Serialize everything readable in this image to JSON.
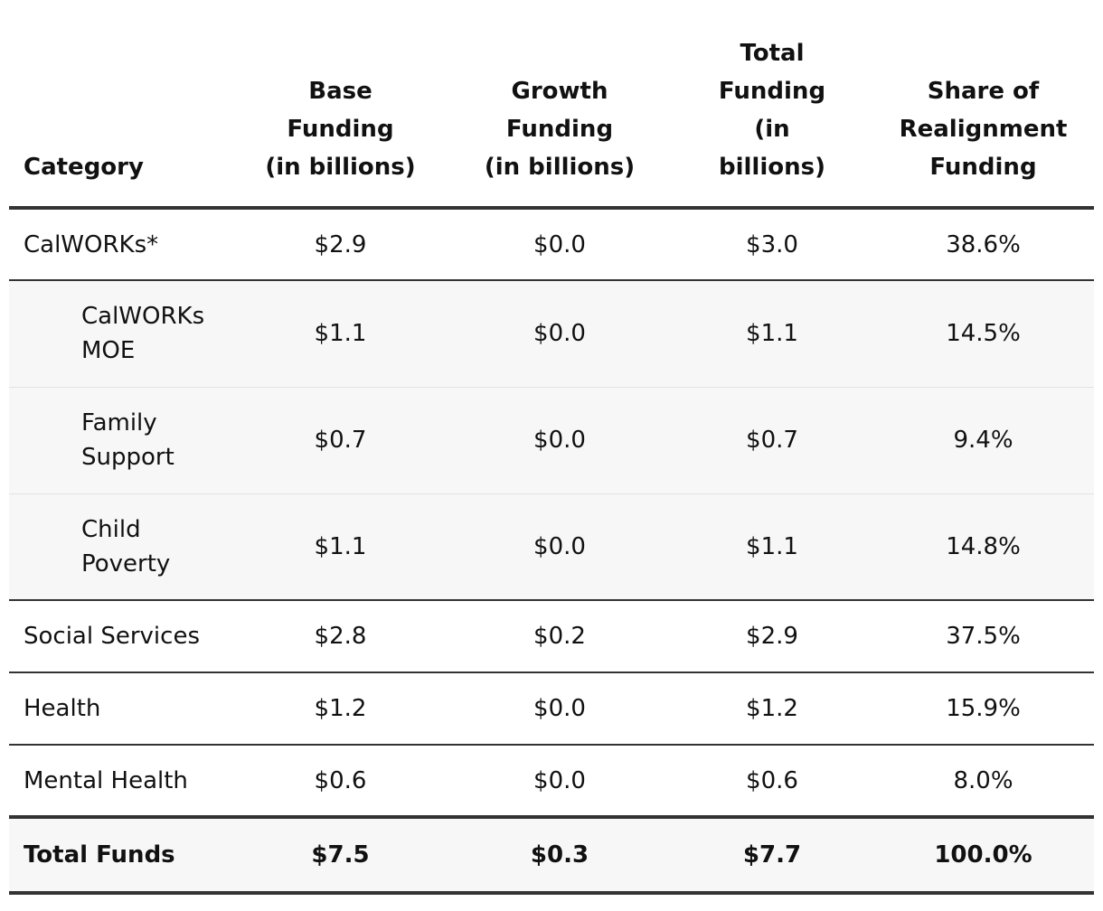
{
  "table": {
    "headers": {
      "category": "Category",
      "base": [
        "Base",
        "Funding",
        "(in billions)"
      ],
      "growth": [
        "Growth",
        "Funding",
        "(in billions)"
      ],
      "total": [
        "Total",
        "Funding",
        "(in",
        "billions)"
      ],
      "share": [
        "Share of",
        "Realignment",
        "Funding"
      ]
    },
    "rows": [
      {
        "category": "CalWORKs*",
        "base": "$2.9",
        "growth": "$0.0",
        "total": "$3.0",
        "share": "38.6%"
      },
      {
        "category": "CalWORKs MOE",
        "base": "$1.1",
        "growth": "$0.0",
        "total": "$1.1",
        "share": "14.5%"
      },
      {
        "category": "Family Support",
        "base": "$0.7",
        "growth": "$0.0",
        "total": "$0.7",
        "share": "9.4%"
      },
      {
        "category": "Child Poverty",
        "base": "$1.1",
        "growth": "$0.0",
        "total": "$1.1",
        "share": "14.8%"
      },
      {
        "category": "Social Services",
        "base": "$2.8",
        "growth": "$0.2",
        "total": "$2.9",
        "share": "37.5%"
      },
      {
        "category": "Health",
        "base": "$1.2",
        "growth": "$0.0",
        "total": "$1.2",
        "share": "15.9%"
      },
      {
        "category": "Mental Health",
        "base": "$0.6",
        "growth": "$0.0",
        "total": "$0.6",
        "share": "8.0%"
      }
    ],
    "total": {
      "category": "Total Funds",
      "base": "$7.5",
      "growth": "$0.3",
      "total": "$7.7",
      "share": "100.0%"
    }
  }
}
